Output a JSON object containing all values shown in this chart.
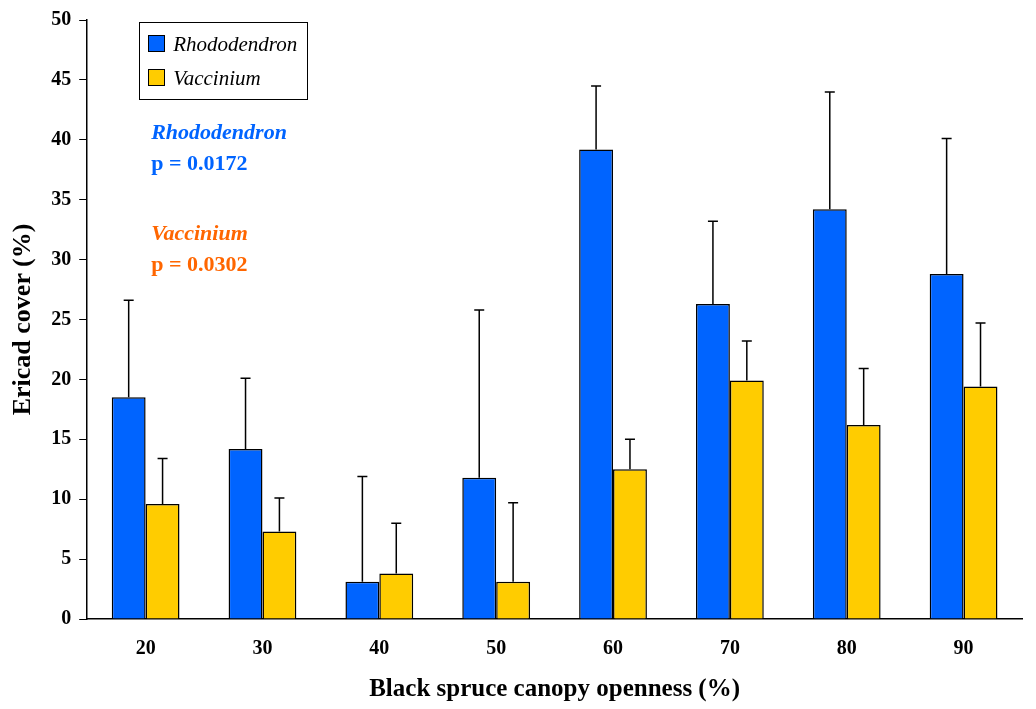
{
  "chart_data": {
    "type": "bar",
    "xlabel": "Black spruce canopy openness (%)",
    "ylabel": "Ericad cover (%)",
    "categories": [
      "20",
      "30",
      "40",
      "50",
      "60",
      "70",
      "80",
      "90"
    ],
    "series": [
      {
        "name": "Rhododendron",
        "color": "#0064ff",
        "values": [
          18.5,
          14.2,
          3.1,
          11.8,
          39.2,
          26.3,
          34.2,
          28.8
        ],
        "errors": [
          [
            18.5,
            26.6
          ],
          [
            14.2,
            20.1
          ],
          [
            3.1,
            11.9
          ],
          [
            11.8,
            25.8
          ],
          [
            39.2,
            44.5
          ],
          [
            26.3,
            33.2
          ],
          [
            34.2,
            44.0
          ],
          [
            28.8,
            40.1
          ]
        ]
      },
      {
        "name": "Vaccinium",
        "color": "#ffcc00",
        "values": [
          9.6,
          7.3,
          3.8,
          3.1,
          12.5,
          19.9,
          16.2,
          19.4
        ],
        "errors": [
          [
            9.6,
            13.4
          ],
          [
            7.3,
            10.1
          ],
          [
            3.8,
            8.0
          ],
          [
            3.1,
            9.7
          ],
          [
            12.5,
            15.0
          ],
          [
            19.9,
            23.2
          ],
          [
            16.2,
            20.9
          ],
          [
            19.4,
            24.7
          ]
        ]
      }
    ],
    "annotations": [
      "Rhododendron\np = 0.0172",
      "Vaccinium\np = 0.0302"
    ],
    "ylim": [
      0,
      50
    ],
    "yticks": [
      0,
      5,
      10,
      15,
      20,
      25,
      30,
      35,
      40,
      45,
      50
    ],
    "legend": "top left"
  }
}
